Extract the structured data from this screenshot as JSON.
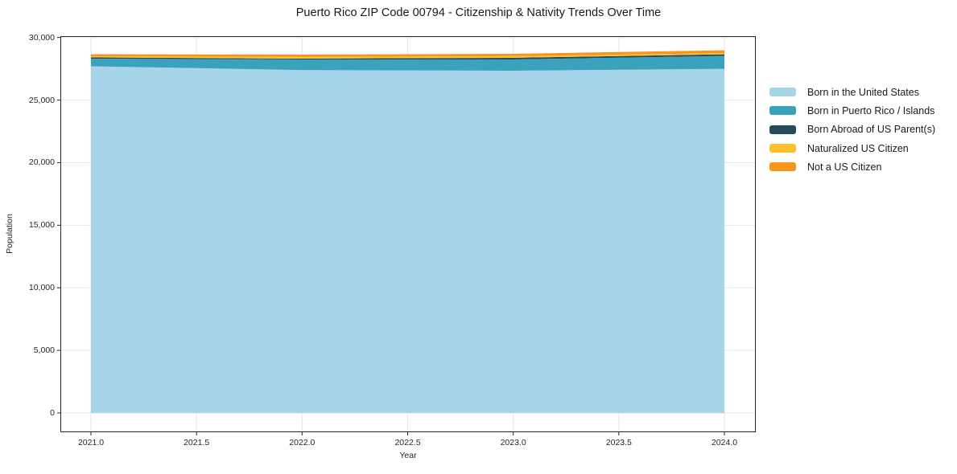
{
  "title": "Puerto Rico ZIP Code 00794 - Citizenship & Nativity Trends Over Time",
  "x_axis": {
    "label": "Year",
    "ticks": [
      "2021.0",
      "2021.5",
      "2022.0",
      "2022.5",
      "2023.0",
      "2023.5",
      "2024.0"
    ]
  },
  "y_axis": {
    "label": "Population",
    "ticks": [
      "0",
      "5,000",
      "10,000",
      "15,000",
      "20,000",
      "25,000",
      "30,000"
    ]
  },
  "chart_data": {
    "type": "area",
    "stacked": true,
    "title": "Puerto Rico ZIP Code 00794 - Citizenship & Nativity Trends Over Time",
    "xlabel": "Year",
    "ylabel": "Population",
    "x": [
      2021,
      2022,
      2023,
      2024
    ],
    "series": [
      {
        "name": "Born in the United States",
        "color": "#a6d4e8",
        "values": [
          27700,
          27400,
          27350,
          27500
        ]
      },
      {
        "name": "Born in Puerto Rico / Islands",
        "color": "#3aa2bd",
        "values": [
          610,
          850,
          900,
          1030
        ]
      },
      {
        "name": "Born Abroad of US Parent(s)",
        "color": "#26495c",
        "values": [
          100,
          65,
          130,
          130
        ]
      },
      {
        "name": "Naturalized US Citizen",
        "color": "#fcc22d",
        "values": [
          95,
          130,
          130,
          95
        ]
      },
      {
        "name": "Not a US Citizen",
        "color": "#f6941e",
        "values": [
          160,
          190,
          190,
          225
        ]
      }
    ],
    "xlim": [
      2021,
      2024
    ],
    "ylim": [
      0,
      30000
    ],
    "grid": true,
    "legend_position": "right-outside",
    "colors": {
      "spine": "#262626",
      "gridline": "#e7e7e7",
      "background": "#ffffff"
    }
  }
}
